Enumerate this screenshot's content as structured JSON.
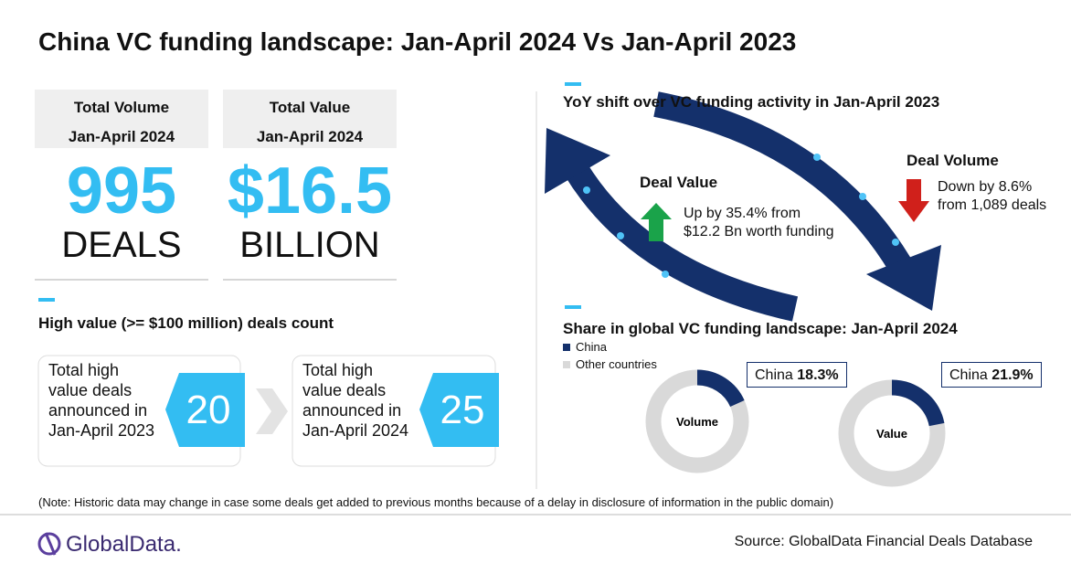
{
  "header": {
    "title": "China VC funding landscape: Jan-April 2024 Vs Jan-April 2023"
  },
  "kpis": [
    {
      "label": "Total Volume",
      "period": "Jan-April 2024",
      "value": "995",
      "unit": "DEALS"
    },
    {
      "label": "Total Value",
      "period": "Jan-April 2024",
      "value": "$16.5",
      "unit": "BILLION"
    }
  ],
  "high_value": {
    "title": "High value (>= $100 million) deals count",
    "cards": [
      {
        "text": "Total high value deals announced in Jan-April 2023",
        "value": 20
      },
      {
        "text": "Total high value deals announced in Jan-April 2024",
        "value": 25
      }
    ]
  },
  "yoy": {
    "title": "YoY shift over VC funding activity in Jan-April 2023",
    "deal_value": {
      "title": "Deal Value",
      "lines": [
        "Up by 35.4% from",
        "$12.2 Bn worth funding"
      ]
    },
    "deal_volume": {
      "title": "Deal Volume",
      "lines": [
        "Down by 8.6%",
        "from 1,089 deals"
      ]
    }
  },
  "share": {
    "title": "Share in global VC funding landscape: Jan-April 2024",
    "legend": [
      {
        "name": "China",
        "color": "#14306b"
      },
      {
        "name": "Other countries",
        "color": "#d9d9d9"
      }
    ],
    "charts": [
      {
        "type": "pie",
        "label": "Volume",
        "name": "China",
        "value": 18.3,
        "value_label": "18.3%",
        "color": "#14306b",
        "rest_color": "#d9d9d9"
      },
      {
        "type": "pie",
        "label": "Value",
        "name": "China",
        "value": 21.9,
        "value_label": "21.9%",
        "color": "#14306b",
        "rest_color": "#d9d9d9"
      }
    ]
  },
  "footer": {
    "note": "(Note: Historic data may change in case some deals get added to previous months because of a delay in disclosure of information in the public domain)",
    "logo": "GlobalData.",
    "source": "Source: GlobalData Financial Deals Database"
  }
}
